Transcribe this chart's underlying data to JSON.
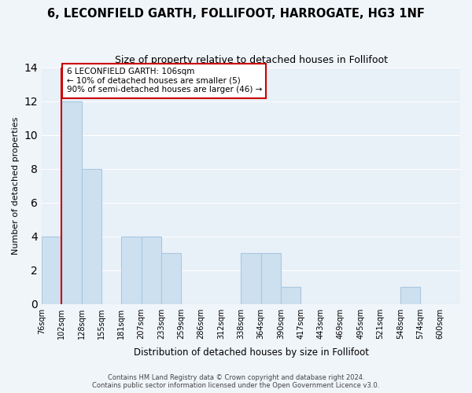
{
  "title": "6, LECONFIELD GARTH, FOLLIFOOT, HARROGATE, HG3 1NF",
  "subtitle": "Size of property relative to detached houses in Follifoot",
  "xlabel": "Distribution of detached houses by size in Follifoot",
  "ylabel": "Number of detached properties",
  "footer_lines": [
    "Contains HM Land Registry data © Crown copyright and database right 2024.",
    "Contains public sector information licensed under the Open Government Licence v3.0."
  ],
  "bin_labels": [
    "76sqm",
    "102sqm",
    "128sqm",
    "155sqm",
    "181sqm",
    "207sqm",
    "233sqm",
    "259sqm",
    "286sqm",
    "312sqm",
    "338sqm",
    "364sqm",
    "390sqm",
    "417sqm",
    "443sqm",
    "469sqm",
    "495sqm",
    "521sqm",
    "548sqm",
    "574sqm",
    "600sqm"
  ],
  "bar_values": [
    4,
    12,
    8,
    0,
    4,
    4,
    3,
    0,
    0,
    0,
    3,
    3,
    1,
    0,
    0,
    0,
    0,
    0,
    1,
    0,
    0
  ],
  "bar_color": "#cce0f0",
  "bar_edge_color": "#aac8e0",
  "annotation_title": "6 LECONFIELD GARTH: 106sqm",
  "annotation_line1": "← 10% of detached houses are smaller (5)",
  "annotation_line2": "90% of semi-detached houses are larger (46) →",
  "annotation_box_color": "#ffffff",
  "annotation_border_color": "#cc0000",
  "reference_line_color": "#cc0000",
  "ylim": [
    0,
    14
  ],
  "yticks": [
    0,
    2,
    4,
    6,
    8,
    10,
    12,
    14
  ],
  "background_color": "#f0f5fa",
  "plot_background_color": "#e8f0f8"
}
